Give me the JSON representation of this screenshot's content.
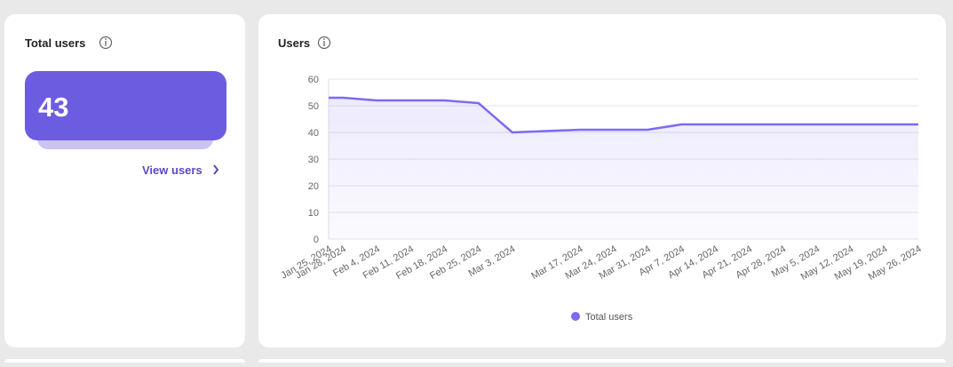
{
  "total_card": {
    "title": "Total users",
    "value": 43,
    "link": "View users"
  },
  "chart_data": {
    "type": "line",
    "title": "Users",
    "x": [
      "Jan 25, 2024",
      "Jan 28, 2024",
      "Feb 4, 2024",
      "Feb 11, 2024",
      "Feb 18, 2024",
      "Feb 25, 2024",
      "Mar 3, 2024",
      "Mar 17, 2024",
      "Mar 24, 2024",
      "Mar 31, 2024",
      "Apr 7, 2024",
      "Apr 14, 2024",
      "Apr 21, 2024",
      "Apr 28, 2024",
      "May 5, 2024",
      "May 12, 2024",
      "May 19, 2024",
      "May 26, 2024"
    ],
    "series": [
      {
        "name": "Total users",
        "color": "#7b6cf0",
        "values": [
          53,
          53,
          52,
          52,
          52,
          51,
          40,
          41,
          41,
          41,
          43,
          43,
          43,
          43,
          43,
          43,
          43,
          43
        ]
      }
    ],
    "ylim": [
      0,
      60
    ],
    "yticks": [
      0,
      10,
      20,
      30,
      40,
      50,
      60
    ],
    "grid": true,
    "legend": "bottom"
  }
}
